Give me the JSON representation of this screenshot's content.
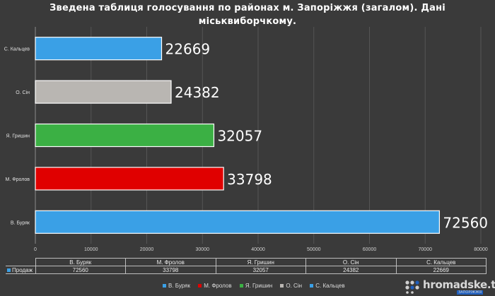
{
  "title_line1": "Зведена таблиця голосування по районах м. Запоріжжя (загалом). Дані",
  "title_line2": "міськвиборчкому.",
  "chart_data": {
    "type": "bar",
    "orientation": "horizontal",
    "title": "Зведена таблиця голосування по районах м. Запоріжжя (загалом). Дані міськвиборчкому.",
    "categories": [
      "В. Буряк",
      "М. Фролов",
      "Я. Гришин",
      "О. Сін",
      "С. Кальцев"
    ],
    "series": [
      {
        "name": "Продаж",
        "values": [
          72560,
          33798,
          32057,
          24382,
          22669
        ],
        "colors": [
          "#3aa0e6",
          "#e00000",
          "#3bb044",
          "#b9b6b2",
          "#3aa0e6"
        ]
      }
    ],
    "xlim": [
      0,
      80000
    ],
    "xticks": [
      0,
      10000,
      20000,
      30000,
      40000,
      50000,
      60000,
      70000,
      80000
    ],
    "grid": "vertical",
    "data_labels": true,
    "legend": "bottom",
    "data_table": true
  },
  "table": {
    "row_label": "Продаж",
    "headers": [
      "В. Буряк",
      "М. Фролов",
      "Я. Гришин",
      "О. Сін",
      "С. Кальцев"
    ],
    "values": [
      "72560",
      "33798",
      "32057",
      "24382",
      "22669"
    ]
  },
  "legend": [
    {
      "label": "В. Буряк",
      "color": "#3aa0e6"
    },
    {
      "label": "М. Фролов",
      "color": "#e00000"
    },
    {
      "label": "Я. Гришин",
      "color": "#3bb044"
    },
    {
      "label": "О. Сін",
      "color": "#b9b6b2"
    },
    {
      "label": "С. Кальцев",
      "color": "#3aa0e6"
    }
  ],
  "brand": {
    "name": "hromadske.tv",
    "sub": "ЗАПОРІЖЖЯ"
  }
}
